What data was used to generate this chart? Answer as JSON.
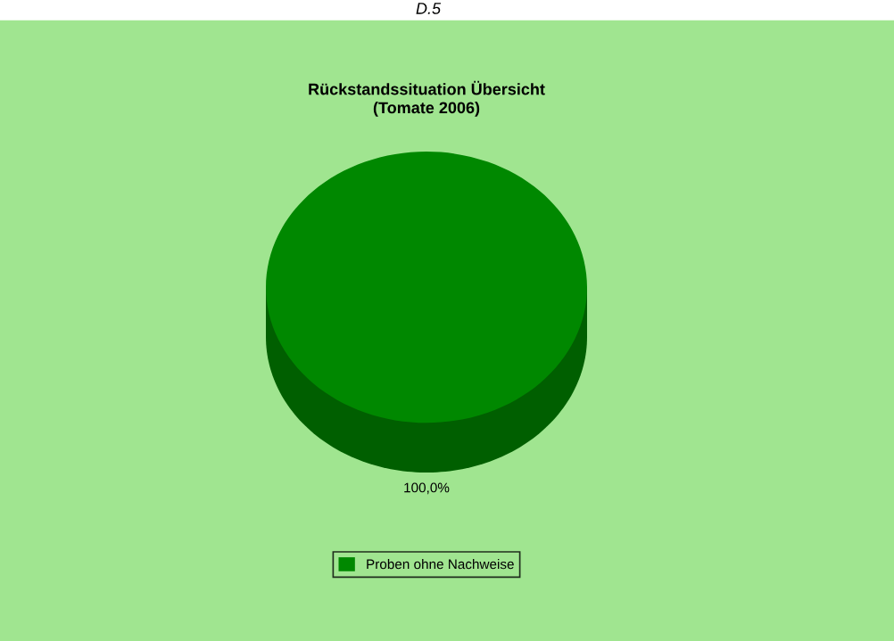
{
  "chart_data": {
    "type": "pie",
    "title": "Rückstandssituation Übersicht\n(Tomate 2006)",
    "categories": [
      "Proben ohne Nachweise"
    ],
    "values": [
      100
    ],
    "colors": [
      "#008800"
    ],
    "value_labels": [
      "100,0%"
    ],
    "legend": "bottom",
    "annotations": [
      "D.5"
    ]
  }
}
